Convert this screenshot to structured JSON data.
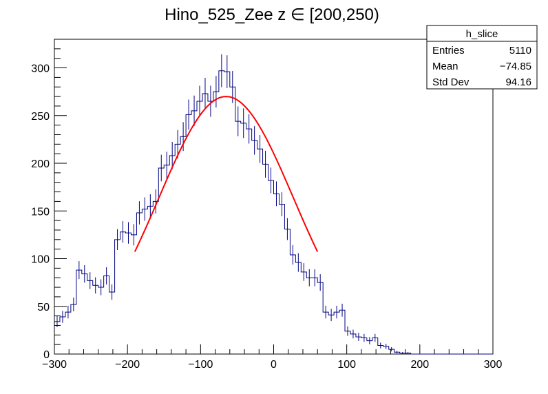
{
  "chart_data": {
    "type": "histogram",
    "title": "Hino_525_Zee z  ∈ [200,250)",
    "xlabel": "",
    "ylabel": "",
    "xlim": [
      -300,
      300
    ],
    "ylim": [
      0,
      330
    ],
    "bin_width": 7.5,
    "x_ticks": [
      -300,
      -200,
      -100,
      0,
      100,
      200,
      300
    ],
    "x_tick_labels": [
      "−300",
      "−200",
      "−100",
      "0",
      "100",
      "200",
      "300"
    ],
    "y_ticks": [
      0,
      50,
      100,
      150,
      200,
      250,
      300
    ],
    "y_tick_labels": [
      "0",
      "50",
      "100",
      "150",
      "200",
      "250",
      "300"
    ],
    "series": [
      {
        "name": "h_slice",
        "color": "#00007f",
        "bin_low_edges": [
          -300,
          -292.5,
          -285,
          -277.5,
          -270,
          -262.5,
          -255,
          -247.5,
          -240,
          -232.5,
          -225,
          -217.5,
          -210,
          -202.5,
          -195,
          -187.5,
          -180,
          -172.5,
          -165,
          -157.5,
          -150,
          -142.5,
          -135,
          -127.5,
          -120,
          -112.5,
          -105,
          -97.5,
          -90,
          -82.5,
          -75,
          -67.5,
          -60,
          -52.5,
          -45,
          -37.5,
          -30,
          -22.5,
          -15,
          -7.5,
          0,
          7.5,
          15,
          22.5,
          30,
          37.5,
          45,
          52.5,
          60,
          67.5,
          75,
          82.5,
          90,
          97.5,
          105,
          112.5,
          120,
          127.5,
          135,
          142.5,
          150,
          157.5,
          165,
          172.5,
          180,
          187.5,
          195,
          202.5,
          210,
          217.5,
          225,
          232.5,
          240,
          247.5,
          255,
          262.5,
          270,
          277.5,
          285,
          292.5
        ],
        "values": [
          34,
          39,
          44,
          52,
          88,
          84,
          77,
          72,
          70,
          82,
          65,
          120,
          128,
          127,
          125,
          148,
          152,
          155,
          160,
          195,
          198,
          208,
          220,
          228,
          251,
          255,
          265,
          273,
          265,
          275,
          297,
          296,
          280,
          244,
          242,
          236,
          224,
          215,
          199,
          182,
          168,
          157,
          131,
          104,
          96,
          86,
          80,
          80,
          75,
          44,
          41,
          44,
          46,
          24,
          21,
          18,
          17,
          14,
          17,
          9,
          8,
          5,
          2,
          1,
          1,
          0,
          0,
          0,
          0,
          0,
          0,
          0,
          0,
          0,
          0,
          0,
          0,
          0,
          0,
          0
        ]
      }
    ],
    "fit": {
      "name": "gaus",
      "color": "#ff0000",
      "x_range": [
        -190,
        60
      ],
      "amplitude": 270,
      "mean": -65,
      "sigma": 92
    },
    "stats_box": {
      "name": "h_slice",
      "rows": [
        {
          "label": "Entries",
          "value": "5110"
        },
        {
          "label": "Mean",
          "value": "−74.85"
        },
        {
          "label": "Std Dev",
          "value": "94.16"
        }
      ]
    }
  }
}
